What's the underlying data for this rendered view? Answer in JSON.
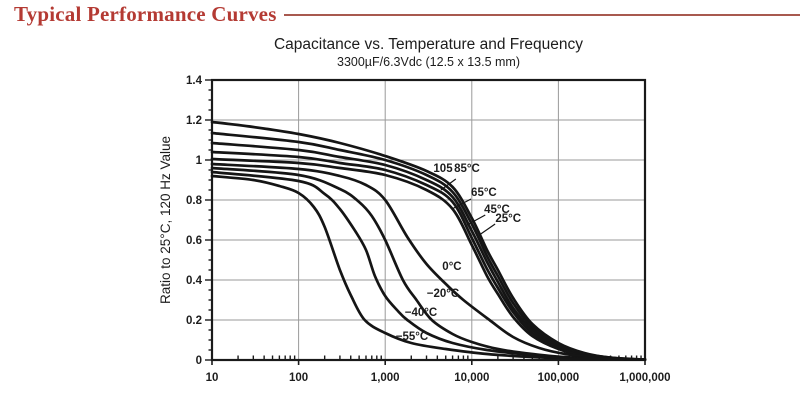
{
  "header": {
    "title": "Typical Performance Curves",
    "color": "#b43a33",
    "rule_color": "#a8594f"
  },
  "chart": {
    "title": "Capacitance vs. Temperature and Frequency",
    "subtitle": "3300µF/6.3Vdc (12.5 x 13.5 mm)",
    "y_axis_label": "Ratio to 25°C, 120 Hz Value",
    "text_color": "#1d1d1d",
    "curve_color": "#151515",
    "grid_color": "#9a9a9a",
    "spine_color": "#1a1a1a"
  },
  "chart_data": {
    "type": "line",
    "x_scale": "log",
    "xlim": [
      10,
      1000000
    ],
    "ylim": [
      0,
      1.4
    ],
    "grid": true,
    "x_ticks": [
      10,
      100,
      1000,
      10000,
      100000,
      1000000
    ],
    "x_tick_labels": [
      "10",
      "100",
      "1,000",
      "10,000",
      "100,000",
      "1,000,000"
    ],
    "y_ticks": [
      0,
      0.2,
      0.4,
      0.6,
      0.8,
      1.0,
      1.2,
      1.4
    ],
    "y_tick_labels": [
      "0",
      "0.2",
      "0.4",
      "0.6",
      "0.8",
      "1",
      "1.2",
      "1.4"
    ],
    "y_minor_step": 0.05,
    "series": [
      {
        "name": "105",
        "points": [
          [
            10,
            1.19
          ],
          [
            30,
            1.165
          ],
          [
            100,
            1.13
          ],
          [
            300,
            1.085
          ],
          [
            1000,
            1.02
          ],
          [
            3000,
            0.945
          ],
          [
            6000,
            0.865
          ],
          [
            10000,
            0.71
          ],
          [
            15000,
            0.55
          ],
          [
            20000,
            0.45
          ],
          [
            30000,
            0.31
          ],
          [
            50000,
            0.18
          ],
          [
            100000,
            0.085
          ],
          [
            200000,
            0.035
          ],
          [
            400000,
            0.012
          ],
          [
            1000000,
            0.002
          ]
        ]
      },
      {
        "name": "85C",
        "points": [
          [
            10,
            1.135
          ],
          [
            100,
            1.09
          ],
          [
            300,
            1.05
          ],
          [
            1000,
            1.0
          ],
          [
            3000,
            0.925
          ],
          [
            6000,
            0.84
          ],
          [
            10000,
            0.68
          ],
          [
            15000,
            0.52
          ],
          [
            20000,
            0.42
          ],
          [
            30000,
            0.285
          ],
          [
            50000,
            0.165
          ],
          [
            100000,
            0.078
          ],
          [
            200000,
            0.03
          ],
          [
            500000,
            0.008
          ],
          [
            1000000,
            0.002
          ]
        ]
      },
      {
        "name": "65C",
        "points": [
          [
            10,
            1.085
          ],
          [
            100,
            1.05
          ],
          [
            300,
            1.015
          ],
          [
            1000,
            0.975
          ],
          [
            3000,
            0.9
          ],
          [
            6000,
            0.815
          ],
          [
            10000,
            0.645
          ],
          [
            15000,
            0.49
          ],
          [
            20000,
            0.39
          ],
          [
            30000,
            0.26
          ],
          [
            50000,
            0.15
          ],
          [
            100000,
            0.07
          ],
          [
            200000,
            0.027
          ],
          [
            500000,
            0.007
          ],
          [
            1000000,
            0.002
          ]
        ]
      },
      {
        "name": "45C",
        "points": [
          [
            10,
            1.04
          ],
          [
            100,
            1.015
          ],
          [
            300,
            0.985
          ],
          [
            1000,
            0.95
          ],
          [
            3000,
            0.875
          ],
          [
            6000,
            0.79
          ],
          [
            10000,
            0.61
          ],
          [
            15000,
            0.455
          ],
          [
            20000,
            0.36
          ],
          [
            30000,
            0.24
          ],
          [
            50000,
            0.135
          ],
          [
            100000,
            0.062
          ],
          [
            200000,
            0.024
          ],
          [
            500000,
            0.006
          ],
          [
            1000000,
            0.002
          ]
        ]
      },
      {
        "name": "25C",
        "points": [
          [
            10,
            1.005
          ],
          [
            100,
            0.985
          ],
          [
            300,
            0.96
          ],
          [
            1000,
            0.925
          ],
          [
            3000,
            0.85
          ],
          [
            6000,
            0.755
          ],
          [
            10000,
            0.575
          ],
          [
            15000,
            0.42
          ],
          [
            20000,
            0.33
          ],
          [
            30000,
            0.215
          ],
          [
            50000,
            0.12
          ],
          [
            100000,
            0.055
          ],
          [
            200000,
            0.02
          ],
          [
            500000,
            0.005
          ],
          [
            1000000,
            0.002
          ]
        ]
      },
      {
        "name": "0C",
        "points": [
          [
            10,
            0.98
          ],
          [
            100,
            0.955
          ],
          [
            300,
            0.92
          ],
          [
            600,
            0.875
          ],
          [
            1000,
            0.8
          ],
          [
            1800,
            0.615
          ],
          [
            3000,
            0.48
          ],
          [
            5300,
            0.37
          ],
          [
            8000,
            0.3
          ],
          [
            16000,
            0.2
          ],
          [
            30000,
            0.115
          ],
          [
            60000,
            0.06
          ],
          [
            120000,
            0.03
          ],
          [
            300000,
            0.01
          ],
          [
            1000000,
            0.002
          ]
        ]
      },
      {
        "name": "-20C",
        "points": [
          [
            10,
            0.96
          ],
          [
            100,
            0.925
          ],
          [
            300,
            0.855
          ],
          [
            500,
            0.79
          ],
          [
            700,
            0.72
          ],
          [
            1000,
            0.6
          ],
          [
            1600,
            0.4
          ],
          [
            2300,
            0.3
          ],
          [
            3450,
            0.2
          ],
          [
            6000,
            0.13
          ],
          [
            10000,
            0.09
          ],
          [
            20000,
            0.055
          ],
          [
            50000,
            0.03
          ],
          [
            150000,
            0.012
          ],
          [
            1000000,
            0.002
          ]
        ]
      },
      {
        "name": "-40C",
        "points": [
          [
            10,
            0.94
          ],
          [
            100,
            0.895
          ],
          [
            200,
            0.83
          ],
          [
            300,
            0.755
          ],
          [
            450,
            0.645
          ],
          [
            600,
            0.55
          ],
          [
            760,
            0.42
          ],
          [
            1000,
            0.32
          ],
          [
            1400,
            0.245
          ],
          [
            1800,
            0.2
          ],
          [
            3000,
            0.135
          ],
          [
            6000,
            0.085
          ],
          [
            15000,
            0.05
          ],
          [
            50000,
            0.025
          ],
          [
            150000,
            0.01
          ],
          [
            1000000,
            0.002
          ]
        ]
      },
      {
        "name": "-55C",
        "points": [
          [
            10,
            0.92
          ],
          [
            30,
            0.9
          ],
          [
            60,
            0.87
          ],
          [
            100,
            0.835
          ],
          [
            150,
            0.765
          ],
          [
            200,
            0.665
          ],
          [
            300,
            0.45
          ],
          [
            400,
            0.325
          ],
          [
            580,
            0.2
          ],
          [
            1000,
            0.135
          ],
          [
            2000,
            0.085
          ],
          [
            5000,
            0.055
          ],
          [
            15000,
            0.03
          ],
          [
            50000,
            0.015
          ],
          [
            200000,
            0.006
          ],
          [
            1000000,
            0.002
          ]
        ]
      }
    ],
    "curve_labels": [
      {
        "text": "105",
        "f": 4650,
        "r": 0.96
      },
      {
        "text": "85°C",
        "f": 8800,
        "r": 0.96,
        "leader": {
          "f1": 6540,
          "r1": 0.905,
          "f2": 4400,
          "r2": 0.85
        }
      },
      {
        "text": "65°C",
        "f": 13800,
        "r": 0.84,
        "leader": {
          "f1": 9800,
          "r1": 0.805,
          "f2": 5900,
          "r2": 0.755
        }
      },
      {
        "text": "45°C",
        "f": 19500,
        "r": 0.755,
        "leader": {
          "f1": 14300,
          "r1": 0.725,
          "f2": 8800,
          "r2": 0.675
        }
      },
      {
        "text": "25°C",
        "f": 26300,
        "r": 0.71,
        "leader": {
          "f1": 18600,
          "r1": 0.68,
          "f2": 12200,
          "r2": 0.625
        }
      },
      {
        "text": "0°C",
        "f": 5900,
        "r": 0.47
      },
      {
        "text": "−20°C",
        "f": 4650,
        "r": 0.335
      },
      {
        "text": "−40°C",
        "f": 2590,
        "r": 0.24
      },
      {
        "text": "−55°C",
        "f": 2040,
        "r": 0.12
      }
    ]
  }
}
